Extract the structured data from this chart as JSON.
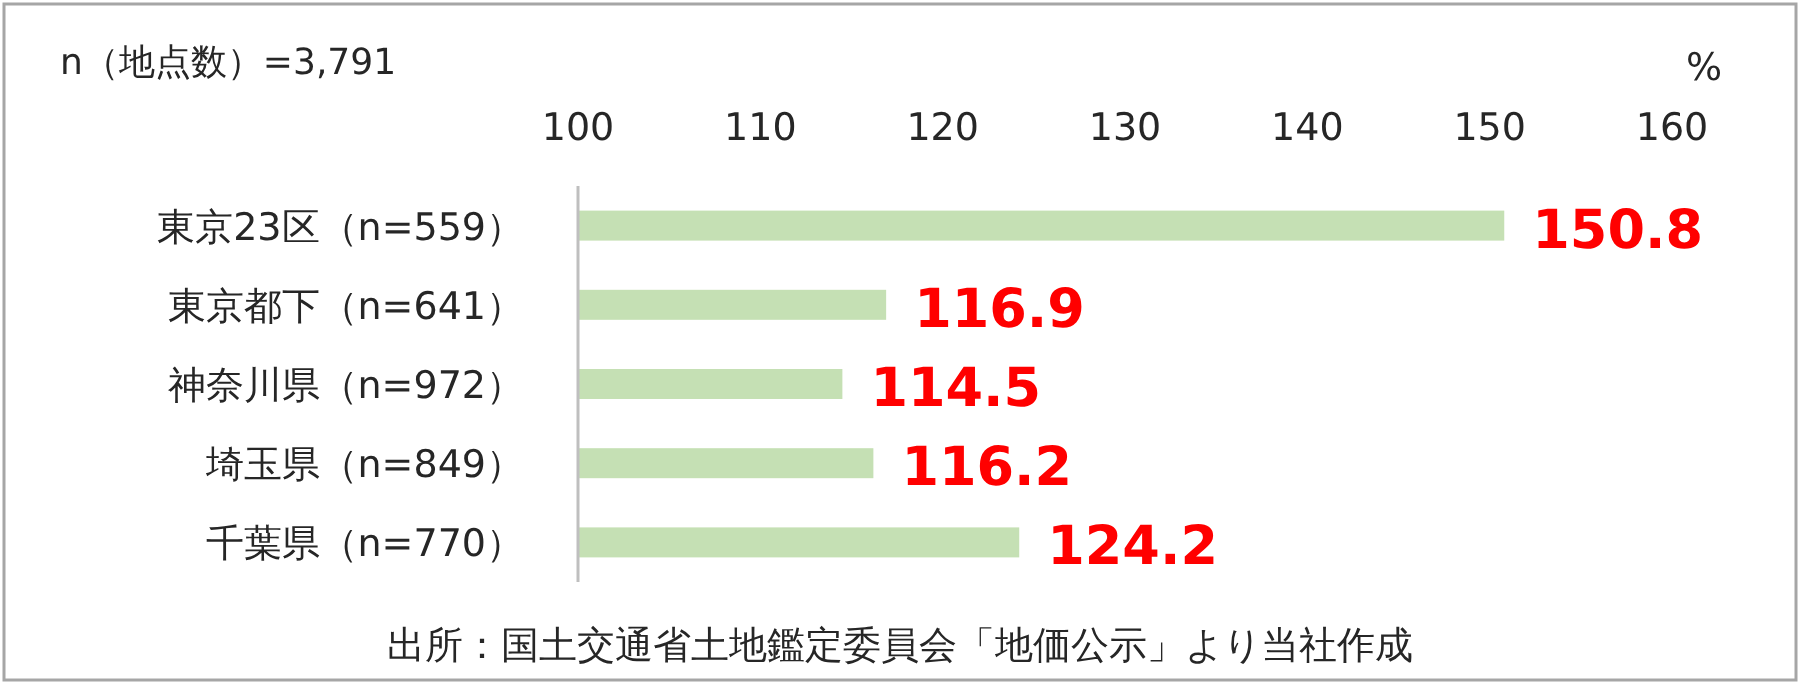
{
  "chart_data": {
    "type": "bar",
    "orientation": "horizontal",
    "xlabel": "%",
    "categories": [
      "東京23区（n=559）",
      "東京都下（n=641）",
      "神奈川県（n=972）",
      "埼玉県（n=849）",
      "千葉県（n=770）"
    ],
    "values": [
      150.8,
      116.9,
      114.5,
      116.2,
      124.2
    ],
    "color": "#c5e0b4",
    "data_labels": true,
    "xlim": [
      100,
      160
    ],
    "xticks": [
      100,
      110,
      120,
      130,
      140,
      150,
      160
    ],
    "annotations": [
      "n（地点数）=3,791",
      "出所：国土交通省土地鑑定委員会「地価公示」より当社作成"
    ]
  }
}
